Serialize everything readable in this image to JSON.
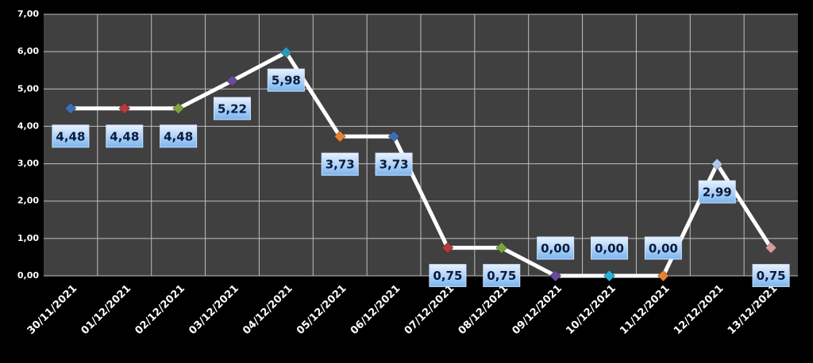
{
  "chart_data": {
    "type": "line",
    "categories": [
      "30/11/2021",
      "01/12/2021",
      "02/12/2021",
      "03/12/2021",
      "04/12/2021",
      "05/12/2021",
      "06/12/2021",
      "07/12/2021",
      "08/12/2021",
      "09/12/2021",
      "10/12/2021",
      "11/12/2021",
      "12/12/2021",
      "13/12/2021"
    ],
    "series": [
      {
        "color": "#ffffff",
        "values": [
          4.48,
          4.48,
          4.48,
          5.22,
          5.98,
          3.73,
          3.73,
          0.75,
          0.75,
          0,
          0,
          0,
          2.99,
          0.75
        ],
        "value_labels": [
          "4,48",
          "4,48",
          "4,48",
          "5,22",
          "5,98",
          "3,73",
          "3,73",
          "0,75",
          "0,75",
          "0,00",
          "0,00",
          "0,00",
          "2,99",
          "0,75"
        ],
        "point_colors": [
          "#3a6fb5",
          "#b83a3a",
          "#7aa33a",
          "#6a4a9a",
          "#2a9ab8",
          "#e8822a",
          "#3a6fb5",
          "#b83a3a",
          "#7aa33a",
          "#6a4a9a",
          "#2ab0d8",
          "#e8822a",
          "#b0c8ee",
          "#d89a9a"
        ]
      }
    ],
    "ylim": [
      0,
      7
    ],
    "yticks": [
      {
        "value": 0,
        "label": "0,00"
      },
      {
        "value": 1,
        "label": "1,00"
      },
      {
        "value": 2,
        "label": "2,00"
      },
      {
        "value": 3,
        "label": "3,00"
      },
      {
        "value": 4,
        "label": "4,00"
      },
      {
        "value": 5,
        "label": "5,00"
      },
      {
        "value": 6,
        "label": "6,00"
      },
      {
        "value": 7,
        "label": "7,00"
      }
    ],
    "grid": true
  }
}
